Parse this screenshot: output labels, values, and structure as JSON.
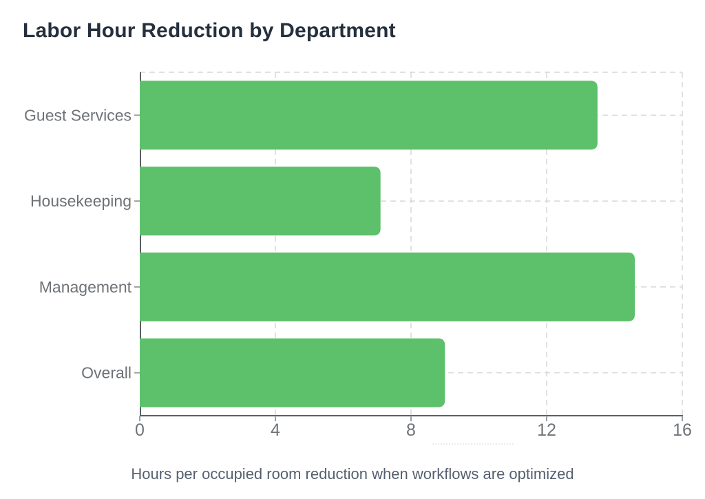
{
  "chart_data": {
    "type": "bar",
    "orientation": "horizontal",
    "title": "Labor Hour Reduction by Department",
    "categories": [
      "Guest Services",
      "Housekeeping",
      "Management",
      "Overall"
    ],
    "values": [
      13.5,
      7.1,
      14.6,
      9.0
    ],
    "xlabel": "Hours per occupied room reduction when workflows are optimized",
    "ylabel": "",
    "xlim": [
      0,
      16
    ],
    "xticks": [
      0,
      4,
      8,
      12,
      16
    ],
    "grid": true,
    "grid_style": "dashed",
    "legend": false,
    "bar_color": "#5dc06b",
    "grid_color": "#d7d7d7",
    "axis_line_color": "#5a5f63",
    "tick_mark_color": "#9aa0a4",
    "title_color": "#252f3d",
    "tick_text_color": "#6f7479",
    "category_text_color": "#6e7276",
    "caption_color": "#556070"
  }
}
